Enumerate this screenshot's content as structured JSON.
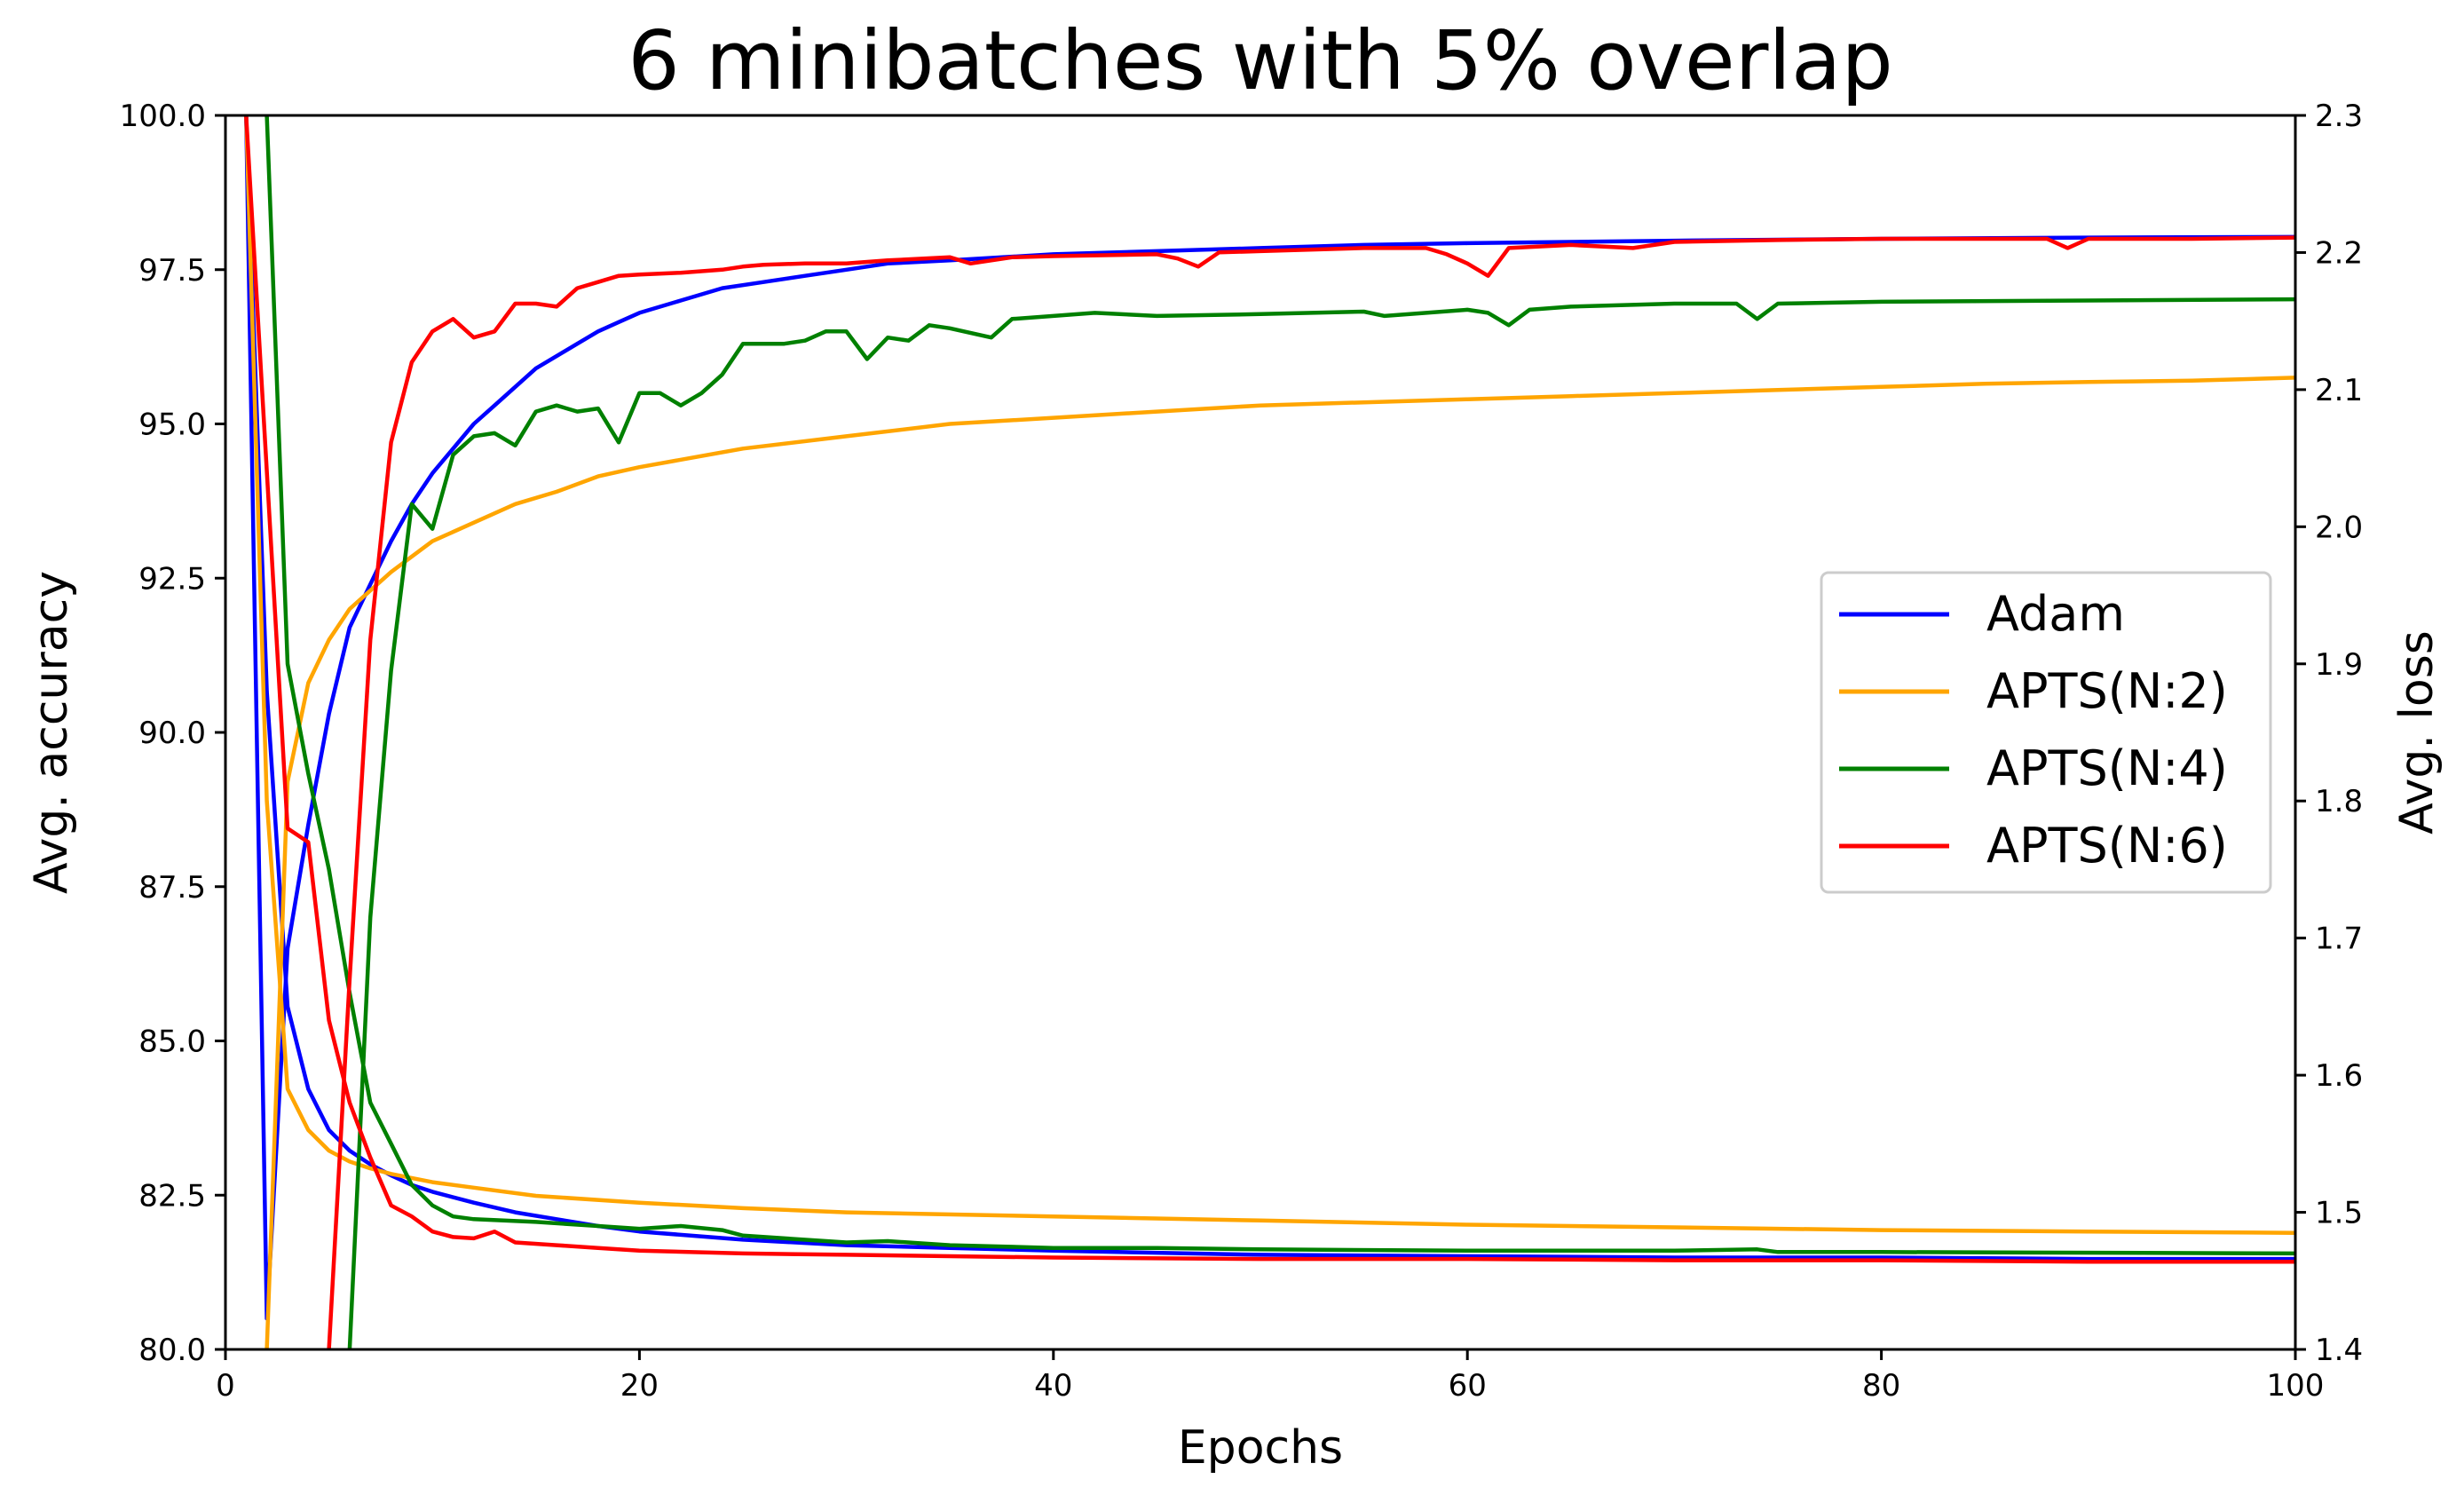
{
  "title": "6 minibatches with 5% overlap",
  "chart_data": {
    "type": "line",
    "title": "6 minibatches with 5% overlap",
    "xlabel": "Epochs",
    "ylabel": "Avg. accuracy",
    "ylabel_right": "Avg. loss",
    "xlim": [
      0,
      100
    ],
    "ylim": [
      80,
      100
    ],
    "ylim_right": [
      1.4,
      2.3
    ],
    "xticks": [
      "0",
      "20",
      "40",
      "60",
      "80",
      "100"
    ],
    "yticks": [
      "80.0",
      "82.5",
      "85.0",
      "87.5",
      "90.0",
      "92.5",
      "95.0",
      "97.5",
      "100.0"
    ],
    "yticks_right": [
      "1.4",
      "1.5",
      "1.6",
      "1.7",
      "1.8",
      "1.9",
      "2.0",
      "2.1",
      "2.2",
      "2.3"
    ],
    "grid": false,
    "legend_position": "center-right",
    "series": [
      {
        "name": "Adam",
        "color": "#0000ff",
        "accuracy": [
          [
            1,
            100
          ],
          [
            2,
            80.5
          ],
          [
            3,
            86.5
          ],
          [
            4,
            88.5
          ],
          [
            5,
            90.3
          ],
          [
            6,
            91.7
          ],
          [
            7,
            92.4
          ],
          [
            8,
            93.1
          ],
          [
            9,
            93.7
          ],
          [
            10,
            94.2
          ],
          [
            11,
            94.6
          ],
          [
            12,
            95.0
          ],
          [
            13,
            95.3
          ],
          [
            14,
            95.6
          ],
          [
            15,
            95.9
          ],
          [
            16,
            96.1
          ],
          [
            17,
            96.3
          ],
          [
            18,
            96.5
          ],
          [
            19,
            96.65
          ],
          [
            20,
            96.8
          ],
          [
            22,
            97.0
          ],
          [
            24,
            97.2
          ],
          [
            26,
            97.3
          ],
          [
            28,
            97.4
          ],
          [
            30,
            97.5
          ],
          [
            32,
            97.6
          ],
          [
            35,
            97.65
          ],
          [
            40,
            97.75
          ],
          [
            45,
            97.8
          ],
          [
            50,
            97.85
          ],
          [
            55,
            97.9
          ],
          [
            60,
            97.93
          ],
          [
            70,
            97.97
          ],
          [
            80,
            98.0
          ],
          [
            90,
            98.02
          ],
          [
            100,
            98.03
          ]
        ],
        "loss": [
          [
            1,
            2.3
          ],
          [
            2,
            1.88
          ],
          [
            3,
            1.65
          ],
          [
            4,
            1.59
          ],
          [
            5,
            1.56
          ],
          [
            6,
            1.545
          ],
          [
            7,
            1.535
          ],
          [
            8,
            1.527
          ],
          [
            9,
            1.52
          ],
          [
            10,
            1.515
          ],
          [
            12,
            1.507
          ],
          [
            14,
            1.5
          ],
          [
            16,
            1.495
          ],
          [
            18,
            1.49
          ],
          [
            20,
            1.486
          ],
          [
            25,
            1.48
          ],
          [
            30,
            1.476
          ],
          [
            35,
            1.474
          ],
          [
            40,
            1.472
          ],
          [
            50,
            1.469
          ],
          [
            60,
            1.468
          ],
          [
            70,
            1.467
          ],
          [
            80,
            1.467
          ],
          [
            90,
            1.466
          ],
          [
            100,
            1.466
          ]
        ]
      },
      {
        "name": "APTS(N:2)",
        "color": "#ffa500",
        "accuracy": [
          [
            2,
            80
          ],
          [
            3,
            89.2
          ],
          [
            4,
            90.8
          ],
          [
            5,
            91.5
          ],
          [
            6,
            92.0
          ],
          [
            7,
            92.3
          ],
          [
            8,
            92.6
          ],
          [
            9,
            92.85
          ],
          [
            10,
            93.1
          ],
          [
            12,
            93.4
          ],
          [
            14,
            93.7
          ],
          [
            16,
            93.9
          ],
          [
            18,
            94.15
          ],
          [
            20,
            94.3
          ],
          [
            25,
            94.6
          ],
          [
            30,
            94.8
          ],
          [
            35,
            95.0
          ],
          [
            40,
            95.1
          ],
          [
            45,
            95.2
          ],
          [
            50,
            95.3
          ],
          [
            55,
            95.35
          ],
          [
            60,
            95.4
          ],
          [
            65,
            95.45
          ],
          [
            70,
            95.5
          ],
          [
            75,
            95.55
          ],
          [
            80,
            95.6
          ],
          [
            85,
            95.65
          ],
          [
            90,
            95.68
          ],
          [
            95,
            95.7
          ],
          [
            100,
            95.75
          ]
        ],
        "loss": [
          [
            1,
            2.3
          ],
          [
            2,
            1.8
          ],
          [
            3,
            1.59
          ],
          [
            4,
            1.56
          ],
          [
            5,
            1.545
          ],
          [
            6,
            1.537
          ],
          [
            7,
            1.532
          ],
          [
            8,
            1.528
          ],
          [
            10,
            1.522
          ],
          [
            12,
            1.518
          ],
          [
            15,
            1.512
          ],
          [
            20,
            1.507
          ],
          [
            25,
            1.503
          ],
          [
            30,
            1.5
          ],
          [
            40,
            1.497
          ],
          [
            50,
            1.494
          ],
          [
            60,
            1.491
          ],
          [
            70,
            1.489
          ],
          [
            80,
            1.487
          ],
          [
            90,
            1.486
          ],
          [
            100,
            1.485
          ]
        ]
      },
      {
        "name": "APTS(N:4)",
        "color": "#008000",
        "accuracy": [
          [
            6,
            80
          ],
          [
            7,
            87
          ],
          [
            8,
            91
          ],
          [
            9,
            93.7
          ],
          [
            10,
            93.3
          ],
          [
            11,
            94.5
          ],
          [
            12,
            94.8
          ],
          [
            13,
            94.85
          ],
          [
            14,
            94.65
          ],
          [
            15,
            95.2
          ],
          [
            16,
            95.3
          ],
          [
            17,
            95.2
          ],
          [
            18,
            95.25
          ],
          [
            19,
            94.7
          ],
          [
            20,
            95.5
          ],
          [
            21,
            95.5
          ],
          [
            22,
            95.3
          ],
          [
            23,
            95.5
          ],
          [
            24,
            95.8
          ],
          [
            25,
            96.3
          ],
          [
            26,
            96.3
          ],
          [
            27,
            96.3
          ],
          [
            28,
            96.35
          ],
          [
            29,
            96.5
          ],
          [
            30,
            96.5
          ],
          [
            31,
            96.05
          ],
          [
            32,
            96.4
          ],
          [
            33,
            96.35
          ],
          [
            34,
            96.6
          ],
          [
            35,
            96.55
          ],
          [
            37,
            96.4
          ],
          [
            38,
            96.7
          ],
          [
            40,
            96.75
          ],
          [
            42,
            96.8
          ],
          [
            45,
            96.75
          ],
          [
            50,
            96.78
          ],
          [
            55,
            96.82
          ],
          [
            56,
            96.75
          ],
          [
            60,
            96.85
          ],
          [
            61,
            96.8
          ],
          [
            62,
            96.6
          ],
          [
            63,
            96.85
          ],
          [
            65,
            96.9
          ],
          [
            70,
            96.95
          ],
          [
            73,
            96.95
          ],
          [
            74,
            96.7
          ],
          [
            75,
            96.95
          ],
          [
            80,
            96.98
          ],
          [
            90,
            97.0
          ],
          [
            100,
            97.02
          ]
        ],
        "loss": [
          [
            2,
            2.3
          ],
          [
            3,
            1.9
          ],
          [
            4,
            1.82
          ],
          [
            5,
            1.75
          ],
          [
            6,
            1.66
          ],
          [
            7,
            1.58
          ],
          [
            8,
            1.55
          ],
          [
            9,
            1.52
          ],
          [
            10,
            1.505
          ],
          [
            11,
            1.497
          ],
          [
            12,
            1.495
          ],
          [
            15,
            1.493
          ],
          [
            18,
            1.49
          ],
          [
            20,
            1.488
          ],
          [
            22,
            1.49
          ],
          [
            24,
            1.487
          ],
          [
            25,
            1.483
          ],
          [
            30,
            1.478
          ],
          [
            32,
            1.479
          ],
          [
            35,
            1.476
          ],
          [
            40,
            1.474
          ],
          [
            45,
            1.474
          ],
          [
            50,
            1.473
          ],
          [
            60,
            1.472
          ],
          [
            70,
            1.472
          ],
          [
            74,
            1.473
          ],
          [
            75,
            1.471
          ],
          [
            80,
            1.471
          ],
          [
            100,
            1.47
          ]
        ]
      },
      {
        "name": "APTS(N:6)",
        "color": "#ff0000",
        "accuracy": [
          [
            5,
            80
          ],
          [
            6,
            86
          ],
          [
            7,
            91.5
          ],
          [
            8,
            94.7
          ],
          [
            9,
            96.0
          ],
          [
            10,
            96.5
          ],
          [
            11,
            96.7
          ],
          [
            12,
            96.4
          ],
          [
            13,
            96.5
          ],
          [
            14,
            96.95
          ],
          [
            15,
            96.95
          ],
          [
            16,
            96.9
          ],
          [
            17,
            97.2
          ],
          [
            18,
            97.3
          ],
          [
            19,
            97.4
          ],
          [
            20,
            97.42
          ],
          [
            22,
            97.45
          ],
          [
            24,
            97.5
          ],
          [
            25,
            97.55
          ],
          [
            26,
            97.58
          ],
          [
            28,
            97.6
          ],
          [
            30,
            97.6
          ],
          [
            32,
            97.65
          ],
          [
            35,
            97.7
          ],
          [
            36,
            97.6
          ],
          [
            38,
            97.7
          ],
          [
            40,
            97.72
          ],
          [
            45,
            97.75
          ],
          [
            46,
            97.68
          ],
          [
            47,
            97.55
          ],
          [
            48,
            97.78
          ],
          [
            50,
            97.8
          ],
          [
            55,
            97.85
          ],
          [
            58,
            97.85
          ],
          [
            59,
            97.75
          ],
          [
            60,
            97.6
          ],
          [
            61,
            97.4
          ],
          [
            62,
            97.85
          ],
          [
            65,
            97.9
          ],
          [
            68,
            97.85
          ],
          [
            70,
            97.95
          ],
          [
            75,
            97.98
          ],
          [
            80,
            98.0
          ],
          [
            85,
            98.0
          ],
          [
            88,
            98.0
          ],
          [
            89,
            97.85
          ],
          [
            90,
            98.0
          ],
          [
            95,
            98.0
          ],
          [
            100,
            98.02
          ]
        ],
        "loss": [
          [
            1,
            2.3
          ],
          [
            3,
            1.78
          ],
          [
            4,
            1.77
          ],
          [
            5,
            1.64
          ],
          [
            6,
            1.58
          ],
          [
            7,
            1.54
          ],
          [
            8,
            1.505
          ],
          [
            9,
            1.497
          ],
          [
            10,
            1.486
          ],
          [
            11,
            1.482
          ],
          [
            12,
            1.481
          ],
          [
            13,
            1.486
          ],
          [
            14,
            1.478
          ],
          [
            16,
            1.476
          ],
          [
            18,
            1.474
          ],
          [
            20,
            1.472
          ],
          [
            25,
            1.47
          ],
          [
            30,
            1.469
          ],
          [
            35,
            1.468
          ],
          [
            40,
            1.467
          ],
          [
            50,
            1.466
          ],
          [
            60,
            1.466
          ],
          [
            70,
            1.465
          ],
          [
            80,
            1.465
          ],
          [
            90,
            1.464
          ],
          [
            100,
            1.464
          ]
        ]
      }
    ]
  }
}
